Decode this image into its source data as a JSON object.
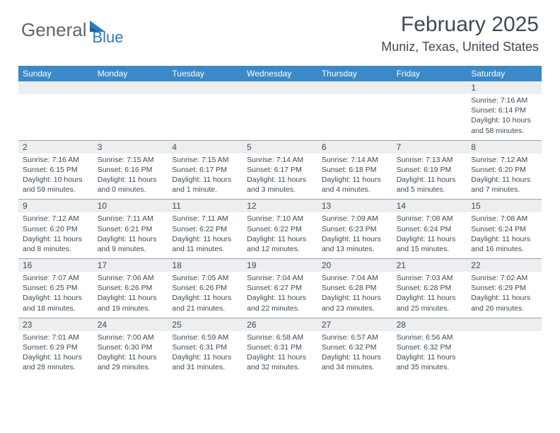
{
  "brand": {
    "part1": "General",
    "part2": "Blue"
  },
  "title": "February 2025",
  "location": "Muniz, Texas, United States",
  "colors": {
    "header_bg": "#3b89c9",
    "header_text": "#ffffff",
    "numrow_bg": "#eceeef",
    "text": "#3f4a54",
    "rule": "#9aa4ad",
    "logo_gray": "#5c6670",
    "logo_blue": "#2f7bbf",
    "page_bg": "#ffffff"
  },
  "dayNames": [
    "Sunday",
    "Monday",
    "Tuesday",
    "Wednesday",
    "Thursday",
    "Friday",
    "Saturday"
  ],
  "weeks": [
    [
      null,
      null,
      null,
      null,
      null,
      null,
      {
        "n": "1",
        "sr": "7:16 AM",
        "ss": "6:14 PM",
        "dl": "10 hours and 58 minutes."
      }
    ],
    [
      {
        "n": "2",
        "sr": "7:16 AM",
        "ss": "6:15 PM",
        "dl": "10 hours and 59 minutes."
      },
      {
        "n": "3",
        "sr": "7:15 AM",
        "ss": "6:16 PM",
        "dl": "11 hours and 0 minutes."
      },
      {
        "n": "4",
        "sr": "7:15 AM",
        "ss": "6:17 PM",
        "dl": "11 hours and 1 minute."
      },
      {
        "n": "5",
        "sr": "7:14 AM",
        "ss": "6:17 PM",
        "dl": "11 hours and 3 minutes."
      },
      {
        "n": "6",
        "sr": "7:14 AM",
        "ss": "6:18 PM",
        "dl": "11 hours and 4 minutes."
      },
      {
        "n": "7",
        "sr": "7:13 AM",
        "ss": "6:19 PM",
        "dl": "11 hours and 5 minutes."
      },
      {
        "n": "8",
        "sr": "7:12 AM",
        "ss": "6:20 PM",
        "dl": "11 hours and 7 minutes."
      }
    ],
    [
      {
        "n": "9",
        "sr": "7:12 AM",
        "ss": "6:20 PM",
        "dl": "11 hours and 8 minutes."
      },
      {
        "n": "10",
        "sr": "7:11 AM",
        "ss": "6:21 PM",
        "dl": "11 hours and 9 minutes."
      },
      {
        "n": "11",
        "sr": "7:11 AM",
        "ss": "6:22 PM",
        "dl": "11 hours and 11 minutes."
      },
      {
        "n": "12",
        "sr": "7:10 AM",
        "ss": "6:22 PM",
        "dl": "11 hours and 12 minutes."
      },
      {
        "n": "13",
        "sr": "7:09 AM",
        "ss": "6:23 PM",
        "dl": "11 hours and 13 minutes."
      },
      {
        "n": "14",
        "sr": "7:08 AM",
        "ss": "6:24 PM",
        "dl": "11 hours and 15 minutes."
      },
      {
        "n": "15",
        "sr": "7:08 AM",
        "ss": "6:24 PM",
        "dl": "11 hours and 16 minutes."
      }
    ],
    [
      {
        "n": "16",
        "sr": "7:07 AM",
        "ss": "6:25 PM",
        "dl": "11 hours and 18 minutes."
      },
      {
        "n": "17",
        "sr": "7:06 AM",
        "ss": "6:26 PM",
        "dl": "11 hours and 19 minutes."
      },
      {
        "n": "18",
        "sr": "7:05 AM",
        "ss": "6:26 PM",
        "dl": "11 hours and 21 minutes."
      },
      {
        "n": "19",
        "sr": "7:04 AM",
        "ss": "6:27 PM",
        "dl": "11 hours and 22 minutes."
      },
      {
        "n": "20",
        "sr": "7:04 AM",
        "ss": "6:28 PM",
        "dl": "11 hours and 23 minutes."
      },
      {
        "n": "21",
        "sr": "7:03 AM",
        "ss": "6:28 PM",
        "dl": "11 hours and 25 minutes."
      },
      {
        "n": "22",
        "sr": "7:02 AM",
        "ss": "6:29 PM",
        "dl": "11 hours and 26 minutes."
      }
    ],
    [
      {
        "n": "23",
        "sr": "7:01 AM",
        "ss": "6:29 PM",
        "dl": "11 hours and 28 minutes."
      },
      {
        "n": "24",
        "sr": "7:00 AM",
        "ss": "6:30 PM",
        "dl": "11 hours and 29 minutes."
      },
      {
        "n": "25",
        "sr": "6:59 AM",
        "ss": "6:31 PM",
        "dl": "11 hours and 31 minutes."
      },
      {
        "n": "26",
        "sr": "6:58 AM",
        "ss": "6:31 PM",
        "dl": "11 hours and 32 minutes."
      },
      {
        "n": "27",
        "sr": "6:57 AM",
        "ss": "6:32 PM",
        "dl": "11 hours and 34 minutes."
      },
      {
        "n": "28",
        "sr": "6:56 AM",
        "ss": "6:32 PM",
        "dl": "11 hours and 35 minutes."
      },
      null
    ]
  ],
  "labels": {
    "sunrise": "Sunrise:",
    "sunset": "Sunset:",
    "daylight": "Daylight:"
  }
}
